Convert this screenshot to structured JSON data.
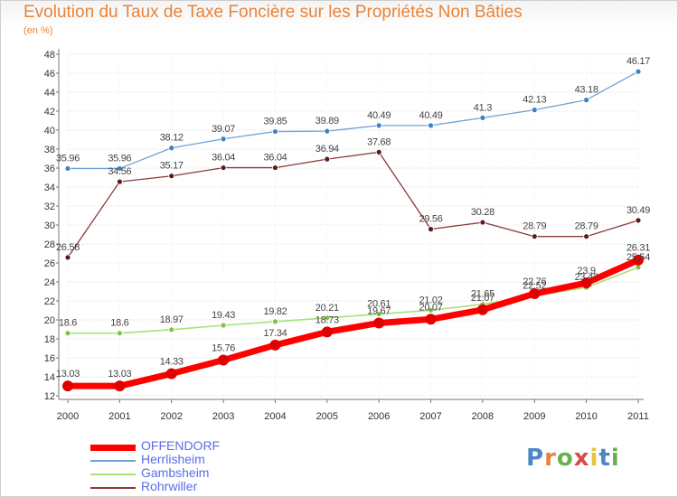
{
  "header": {
    "title": "Evolution du Taux de Taxe Foncière sur les Propriétés Non Bâties",
    "unit": "(en %)"
  },
  "logo": {
    "text": "Proxiti",
    "colors": [
      "#4a86c8",
      "#e8833a",
      "#6ab04c",
      "#d94a4a",
      "#e8c23a",
      "#4a86c8",
      "#6ab04c"
    ]
  },
  "chart_data": {
    "type": "line",
    "x": [
      "2000",
      "2001",
      "2002",
      "2003",
      "2004",
      "2005",
      "2006",
      "2007",
      "2008",
      "2009",
      "2010",
      "2011"
    ],
    "ylim": [
      12,
      48
    ],
    "yticks": [
      12,
      14,
      16,
      18,
      20,
      22,
      24,
      26,
      28,
      30,
      32,
      34,
      36,
      38,
      40,
      42,
      44,
      46,
      48
    ],
    "grid": "horizontal",
    "legend_position": "bottom-left",
    "series": [
      {
        "name": "Herrlisheim",
        "color": "#6fa2d6",
        "marker": "#3f81c2",
        "width": 1.3,
        "radius": 3,
        "values": [
          35.96,
          35.96,
          38.12,
          39.07,
          39.85,
          39.89,
          40.49,
          40.49,
          41.3,
          42.13,
          43.18,
          46.17
        ],
        "labels": [
          "35.96",
          "35.96",
          "38.12",
          "39.07",
          "39.85",
          "39.89",
          "40.49",
          "40.49",
          "41.3",
          "42.13",
          "43.18",
          "46.17"
        ]
      },
      {
        "name": "Rohrwiller",
        "color": "#8b3a3a",
        "marker": "#5c1a1a",
        "width": 1.3,
        "radius": 3,
        "values": [
          26.58,
          34.56,
          35.17,
          36.04,
          36.04,
          36.94,
          37.68,
          29.56,
          30.28,
          28.79,
          28.79,
          30.49
        ],
        "labels": [
          "26.58",
          "34.56",
          "35.17",
          "36.04",
          "36.04",
          "36.94",
          "37.68",
          "29.56",
          "30.28",
          "28.79",
          "28.79",
          "30.49"
        ]
      },
      {
        "name": "Gambsheim",
        "color": "#a8e07a",
        "marker": "#7cc443",
        "width": 1.6,
        "radius": 3,
        "values": [
          18.6,
          18.6,
          18.97,
          19.43,
          19.82,
          20.21,
          20.61,
          21.02,
          21.65,
          22.52,
          23.42,
          25.54
        ],
        "labels": [
          "18.6",
          "18.6",
          "18.97",
          "19.43",
          "19.82",
          "20.21",
          "20.61",
          "21.02",
          "21.65",
          "22.52",
          "23.42",
          "25.54"
        ]
      },
      {
        "name": "OFFENDORF",
        "color": "#ff0000",
        "marker": "#e00000",
        "width": 7,
        "radius": 6,
        "values": [
          13.03,
          13.03,
          14.33,
          15.76,
          17.34,
          18.73,
          19.67,
          20.07,
          21.07,
          22.76,
          23.9,
          26.31
        ],
        "labels": [
          "13.03",
          "13.03",
          "14.33",
          "15.76",
          "17.34",
          "18.73",
          "19.67",
          "20.07",
          "21.07",
          "22.76",
          "23.9",
          "26.31"
        ]
      }
    ],
    "legend_order": [
      "OFFENDORF",
      "Herrlisheim",
      "Gambsheim",
      "Rohrwiller"
    ]
  }
}
